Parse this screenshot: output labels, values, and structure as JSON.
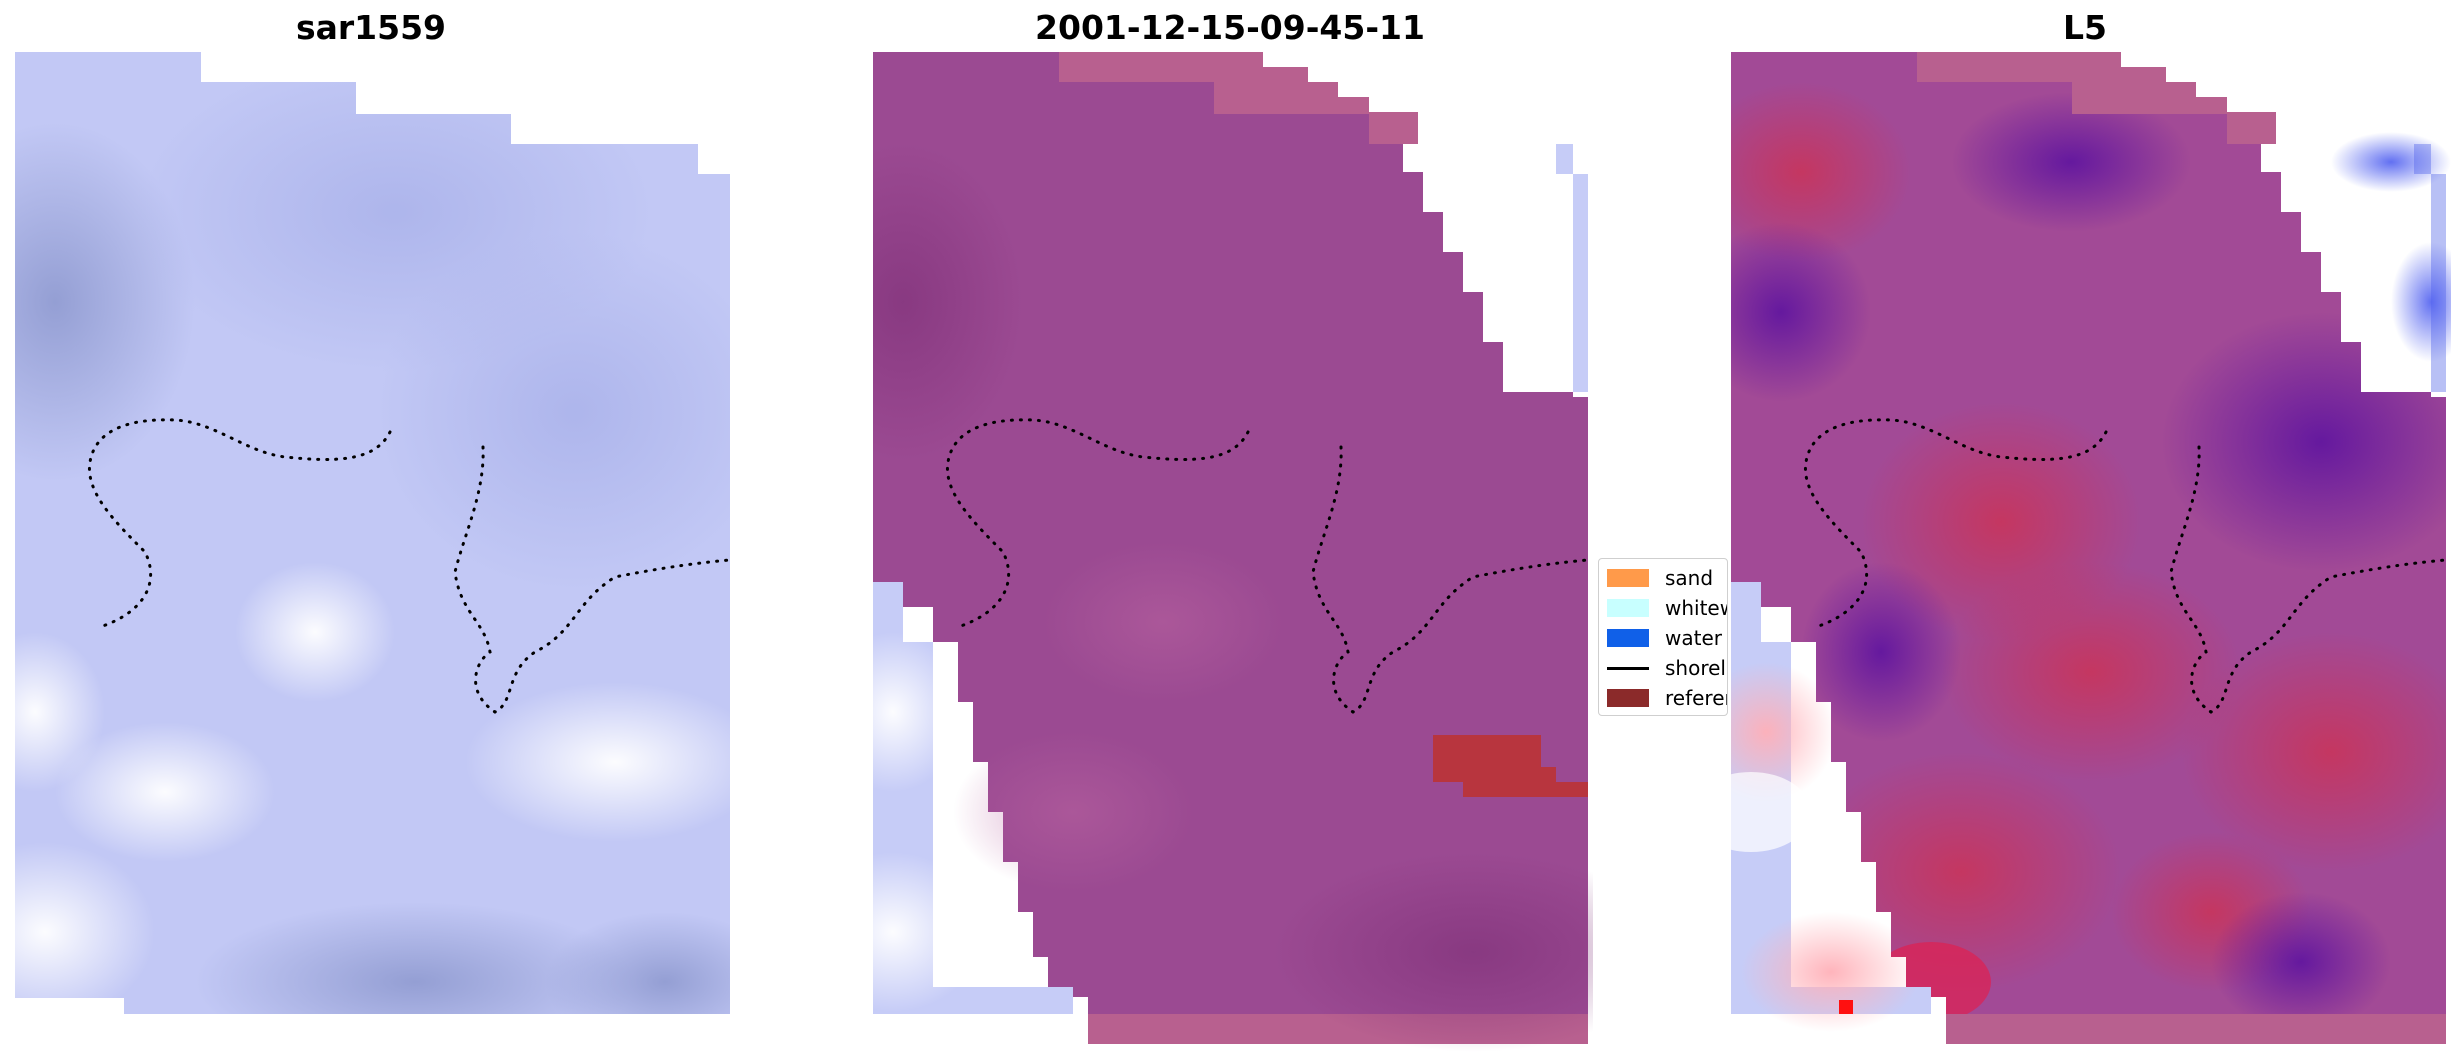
{
  "panels": [
    {
      "title": "sar1559"
    },
    {
      "title": "2001-12-15-09-45-11"
    },
    {
      "title": "L5"
    }
  ],
  "legend": {
    "items": [
      {
        "label": "sand",
        "color": "#ff9a4a",
        "type": "patch"
      },
      {
        "label": "whitewater",
        "color": "#c8ffff",
        "type": "patch"
      },
      {
        "label": "water",
        "color": "#1060e8",
        "type": "patch"
      },
      {
        "label": "shoreline",
        "color": "#000000",
        "type": "line"
      },
      {
        "label": "reference shoreline buffer",
        "color": "#8b2a2a",
        "type": "patch"
      }
    ]
  },
  "colors": {
    "sar_base": "#c2c8f5",
    "classified_base": "#9b4a92",
    "classified_border": "#b8608f",
    "reference_buffer": "#b8353e",
    "l5_red": "#c8365e",
    "l5_purple": "#6a1aa0",
    "shoreline_dots": "#000000"
  }
}
